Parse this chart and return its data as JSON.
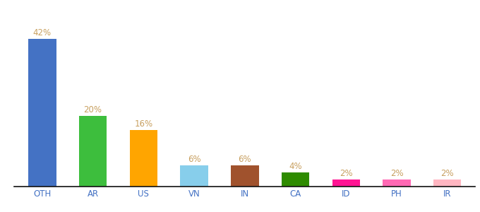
{
  "categories": [
    "OTH",
    "AR",
    "US",
    "VN",
    "IN",
    "CA",
    "ID",
    "PH",
    "IR"
  ],
  "values": [
    42,
    20,
    16,
    6,
    6,
    4,
    2,
    2,
    2
  ],
  "bar_colors": [
    "#4472C4",
    "#3DBE3D",
    "#FFA500",
    "#87CEEB",
    "#A0522D",
    "#2E8B00",
    "#FF1493",
    "#FF69B4",
    "#FFB6C1"
  ],
  "label_color": "#C8A060",
  "label_fontsize": 8.5,
  "tick_fontsize": 8.5,
  "tick_color": "#4472C4",
  "ylim": [
    0,
    50
  ],
  "bar_width": 0.55,
  "background_color": "#ffffff",
  "spine_color": "#111111"
}
